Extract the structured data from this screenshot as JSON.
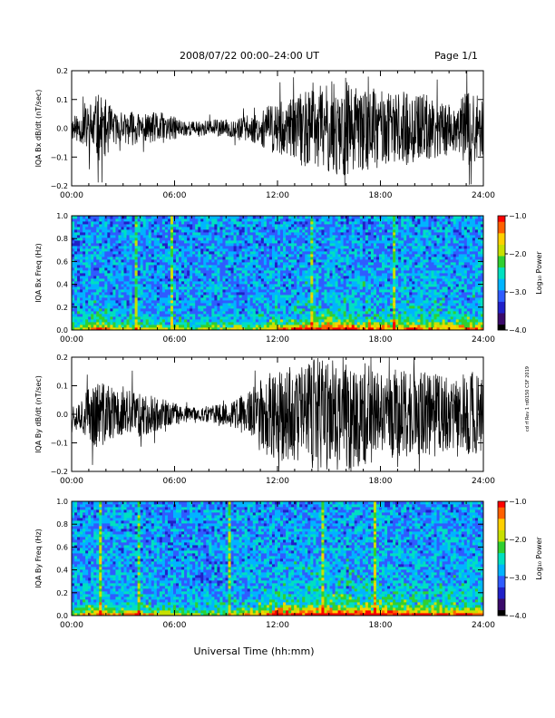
{
  "header": {
    "title": "2008/07/22  00:00–24:00 UT",
    "page": "Page 1/1"
  },
  "footer": {
    "xlabel": "Universal Time (hh:mm)"
  },
  "side_note": "cd rf Rev 1 rd0150 CSF 2019",
  "colors": {
    "waveform": "#000000",
    "colormap": [
      "#000000",
      "#3a0a6a",
      "#2020c8",
      "#2f5cff",
      "#00b4ff",
      "#00e0c0",
      "#30d030",
      "#c8e000",
      "#ffd000",
      "#ff6000",
      "#ff0000"
    ]
  },
  "chart_data": [
    {
      "type": "line",
      "id": "bx-waveform",
      "ylabel": "IQA Bx dB/dt (nT/sec)",
      "ylim": [
        -0.2,
        0.2
      ],
      "yticks": [
        "0.2",
        "0.1",
        "0.0",
        "−0.1",
        "−0.2"
      ],
      "xticks": [
        "00:00",
        "06:00",
        "12:00",
        "18:00",
        "24:00"
      ],
      "xlim": [
        0,
        24
      ],
      "envelope": {
        "x": [
          0,
          0.5,
          1,
          1.5,
          2,
          2.5,
          3,
          3.5,
          4,
          4.5,
          5,
          5.5,
          6,
          6.5,
          7,
          7.5,
          8,
          8.5,
          9,
          9.5,
          10,
          10.5,
          11,
          11.5,
          12,
          12.5,
          13,
          13.5,
          14,
          14.5,
          15,
          15.5,
          16,
          16.5,
          17,
          17.5,
          18,
          18.5,
          19,
          19.5,
          20,
          20.5,
          21,
          21.5,
          22,
          22.5,
          23,
          23.5,
          24
        ],
        "amplitude": [
          0.04,
          0.05,
          0.09,
          0.12,
          0.1,
          0.06,
          0.05,
          0.06,
          0.05,
          0.05,
          0.06,
          0.05,
          0.04,
          0.03,
          0.025,
          0.025,
          0.03,
          0.03,
          0.03,
          0.035,
          0.04,
          0.05,
          0.06,
          0.08,
          0.1,
          0.09,
          0.11,
          0.14,
          0.13,
          0.15,
          0.16,
          0.17,
          0.18,
          0.14,
          0.15,
          0.14,
          0.13,
          0.12,
          0.12,
          0.13,
          0.12,
          0.12,
          0.11,
          0.1,
          0.1,
          0.08,
          0.13,
          0.12,
          0.1
        ]
      }
    },
    {
      "type": "heatmap",
      "id": "bx-spectrogram",
      "ylabel": "IQA Bx Freq (Hz)",
      "ylim": [
        0.0,
        1.0
      ],
      "yticks": [
        "1.0",
        "0.8",
        "0.6",
        "0.4",
        "0.2",
        "0.0"
      ],
      "xticks": [
        "00:00",
        "06:00",
        "12:00",
        "18:00",
        "24:00"
      ],
      "xlim": [
        0,
        24
      ],
      "colorbar": {
        "label": "Log₁₀ Power",
        "range": [
          -4.0,
          -1.0
        ],
        "ticks": [
          "−1.0",
          "−2.0",
          "−3.0",
          "−4.0"
        ]
      }
    },
    {
      "type": "line",
      "id": "by-waveform",
      "ylabel": "IQA By dB/dt (nT/sec)",
      "ylim": [
        -0.2,
        0.2
      ],
      "yticks": [
        "0.2",
        "0.1",
        "0.0",
        "−0.1",
        "−0.2"
      ],
      "xticks": [
        "00:00",
        "06:00",
        "12:00",
        "18:00",
        "24:00"
      ],
      "xlim": [
        0,
        24
      ],
      "envelope": {
        "x": [
          0,
          0.5,
          1,
          1.5,
          2,
          2.5,
          3,
          3.5,
          4,
          4.5,
          5,
          5.5,
          6,
          6.5,
          7,
          7.5,
          8,
          8.5,
          9,
          9.5,
          10,
          10.5,
          11,
          11.5,
          12,
          12.5,
          13,
          13.5,
          14,
          14.5,
          15,
          15.5,
          16,
          16.5,
          17,
          17.5,
          18,
          18.5,
          19,
          19.5,
          20,
          20.5,
          21,
          21.5,
          22,
          22.5,
          23,
          23.5,
          24
        ],
        "amplitude": [
          0.05,
          0.06,
          0.1,
          0.12,
          0.11,
          0.09,
          0.08,
          0.09,
          0.08,
          0.07,
          0.06,
          0.05,
          0.04,
          0.03,
          0.025,
          0.025,
          0.03,
          0.035,
          0.04,
          0.05,
          0.07,
          0.09,
          0.12,
          0.15,
          0.16,
          0.17,
          0.18,
          0.17,
          0.19,
          0.2,
          0.2,
          0.2,
          0.2,
          0.19,
          0.19,
          0.18,
          0.17,
          0.16,
          0.16,
          0.16,
          0.15,
          0.15,
          0.15,
          0.14,
          0.13,
          0.12,
          0.17,
          0.15,
          0.12
        ]
      }
    },
    {
      "type": "heatmap",
      "id": "by-spectrogram",
      "ylabel": "IQA By Freq (Hz)",
      "ylim": [
        0.0,
        1.0
      ],
      "yticks": [
        "1.0",
        "0.8",
        "0.6",
        "0.4",
        "0.2",
        "0.0"
      ],
      "xticks": [
        "00:00",
        "06:00",
        "12:00",
        "18:00",
        "24:00"
      ],
      "xlim": [
        0,
        24
      ],
      "colorbar": {
        "label": "Log₁₀ Power",
        "range": [
          -4.0,
          -1.0
        ],
        "ticks": [
          "−1.0",
          "−2.0",
          "−3.0",
          "−4.0"
        ]
      }
    }
  ]
}
